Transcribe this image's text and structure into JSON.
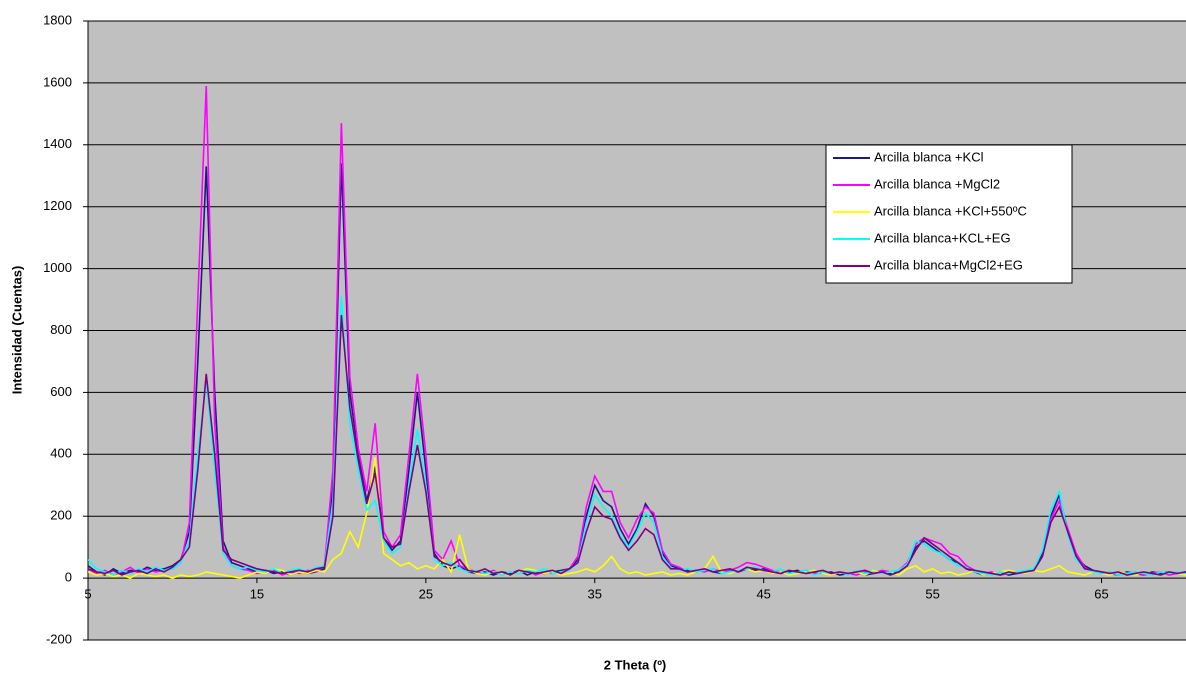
{
  "chart_data": {
    "type": "line",
    "xlabel": "2 Theta (º)",
    "ylabel": "Intensidad (Cuentas)",
    "xlim": [
      5,
      70
    ],
    "ylim": [
      -200,
      1800
    ],
    "xticks": [
      5,
      15,
      25,
      35,
      45,
      55,
      65
    ],
    "yticks": [
      -200,
      0,
      200,
      400,
      600,
      800,
      1000,
      1200,
      1400,
      1600,
      1800
    ],
    "grid": true,
    "legend": "upper right",
    "x": [
      5,
      5.5,
      6,
      6.5,
      7,
      7.5,
      8,
      8.5,
      9,
      9.5,
      10,
      10.5,
      11,
      11.5,
      12,
      12.5,
      13,
      13.5,
      14,
      14.5,
      15,
      15.5,
      16,
      16.5,
      17,
      17.5,
      18,
      18.5,
      19,
      19.5,
      20,
      20.5,
      21,
      21.5,
      22,
      22.5,
      23,
      23.5,
      24,
      24.5,
      25,
      25.5,
      26,
      26.5,
      27,
      27.5,
      28,
      28.5,
      29,
      29.5,
      30,
      30.5,
      31,
      31.5,
      32,
      32.5,
      33,
      33.5,
      34,
      34.5,
      35,
      35.5,
      36,
      36.5,
      37,
      37.5,
      38,
      38.5,
      39,
      39.5,
      40,
      40.5,
      41,
      41.5,
      42,
      42.5,
      43,
      43.5,
      44,
      44.5,
      45,
      45.5,
      46,
      46.5,
      47,
      47.5,
      48,
      48.5,
      49,
      49.5,
      50,
      50.5,
      51,
      51.5,
      52,
      52.5,
      53,
      53.5,
      54,
      54.5,
      55,
      55.5,
      56,
      56.5,
      57,
      57.5,
      58,
      58.5,
      59,
      59.5,
      60,
      60.5,
      61,
      61.5,
      62,
      62.5,
      63,
      63.5,
      64,
      64.5,
      65,
      65.5,
      66,
      66.5,
      67,
      67.5,
      68,
      68.5,
      69,
      69.5,
      70
    ],
    "series": [
      {
        "name": "Arcilla blanca +KCl",
        "color": "#1a1a80",
        "values": [
          40,
          20,
          10,
          30,
          15,
          25,
          20,
          35,
          25,
          30,
          40,
          60,
          150,
          700,
          1330,
          600,
          120,
          50,
          40,
          30,
          20,
          25,
          15,
          20,
          10,
          20,
          15,
          20,
          30,
          300,
          1340,
          600,
          400,
          250,
          360,
          130,
          90,
          120,
          350,
          600,
          350,
          80,
          40,
          30,
          40,
          20,
          15,
          20,
          10,
          20,
          15,
          25,
          10,
          20,
          15,
          20,
          25,
          30,
          60,
          200,
          300,
          250,
          230,
          160,
          110,
          160,
          240,
          200,
          80,
          40,
          30,
          25,
          20,
          30,
          20,
          15,
          25,
          20,
          30,
          25,
          30,
          20,
          15,
          20,
          25,
          15,
          20,
          15,
          20,
          10,
          15,
          20,
          10,
          15,
          20,
          15,
          20,
          40,
          100,
          120,
          100,
          80,
          60,
          50,
          30,
          20,
          10,
          15,
          20,
          10,
          15,
          20,
          30,
          80,
          200,
          270,
          150,
          70,
          40,
          25,
          20,
          15,
          10,
          20,
          15,
          10,
          20,
          15,
          20,
          15,
          20
        ]
      },
      {
        "name": "Arcilla blanca +MgCl2",
        "color": "#ff00ff",
        "values": [
          30,
          15,
          25,
          10,
          20,
          35,
          15,
          30,
          20,
          25,
          30,
          50,
          180,
          900,
          1590,
          500,
          100,
          40,
          30,
          25,
          15,
          20,
          25,
          10,
          20,
          15,
          25,
          20,
          40,
          350,
          1470,
          650,
          420,
          280,
          500,
          150,
          100,
          140,
          400,
          660,
          400,
          90,
          60,
          120,
          40,
          30,
          20,
          15,
          25,
          10,
          20,
          15,
          25,
          10,
          20,
          15,
          20,
          30,
          70,
          230,
          330,
          280,
          280,
          180,
          130,
          190,
          230,
          210,
          90,
          45,
          35,
          20,
          25,
          20,
          30,
          20,
          25,
          35,
          50,
          45,
          35,
          25,
          20,
          15,
          20,
          25,
          15,
          20,
          10,
          20,
          15,
          10,
          20,
          15,
          25,
          20,
          25,
          50,
          110,
          130,
          120,
          110,
          80,
          70,
          40,
          25,
          15,
          20,
          10,
          15,
          20,
          15,
          25,
          70,
          190,
          250,
          160,
          80,
          35,
          20,
          15,
          20,
          10,
          15,
          20,
          10,
          15,
          20,
          10,
          15,
          20
        ]
      },
      {
        "name": "Arcilla blanca +KCl+550ºC",
        "color": "#ffff00",
        "values": [
          20,
          10,
          15,
          5,
          10,
          0,
          15,
          10,
          5,
          10,
          0,
          10,
          5,
          10,
          20,
          15,
          10,
          5,
          0,
          10,
          20,
          15,
          30,
          25,
          10,
          20,
          15,
          25,
          20,
          60,
          80,
          150,
          100,
          210,
          390,
          80,
          60,
          40,
          50,
          30,
          40,
          30,
          60,
          20,
          140,
          30,
          15,
          10,
          20,
          15,
          10,
          20,
          30,
          25,
          15,
          20,
          10,
          15,
          20,
          30,
          20,
          40,
          70,
          30,
          15,
          20,
          10,
          15,
          20,
          10,
          15,
          10,
          20,
          30,
          70,
          20,
          15,
          25,
          30,
          20,
          25,
          15,
          20,
          10,
          15,
          20,
          25,
          15,
          10,
          20,
          15,
          20,
          10,
          25,
          15,
          20,
          10,
          30,
          40,
          20,
          30,
          15,
          20,
          10,
          15,
          25,
          10,
          15,
          20,
          25,
          20,
          15,
          25,
          20,
          30,
          40,
          20,
          15,
          10,
          20,
          15,
          10,
          20,
          15,
          10,
          20,
          15,
          10,
          20,
          15,
          10
        ]
      },
      {
        "name": "Arcilla blanca+KCL+EG",
        "color": "#00ffff",
        "values": [
          60,
          30,
          20,
          10,
          25,
          15,
          30,
          20,
          35,
          25,
          30,
          50,
          120,
          400,
          640,
          350,
          80,
          40,
          30,
          35,
          25,
          20,
          30,
          15,
          25,
          30,
          20,
          35,
          40,
          250,
          910,
          500,
          350,
          220,
          250,
          120,
          80,
          100,
          300,
          480,
          300,
          60,
          40,
          50,
          30,
          20,
          25,
          15,
          20,
          10,
          20,
          15,
          25,
          20,
          30,
          15,
          20,
          25,
          50,
          180,
          270,
          230,
          200,
          140,
          100,
          150,
          210,
          180,
          70,
          35,
          25,
          30,
          20,
          25,
          30,
          15,
          20,
          25,
          30,
          35,
          25,
          20,
          30,
          15,
          20,
          25,
          10,
          20,
          15,
          20,
          10,
          25,
          15,
          20,
          15,
          20,
          25,
          45,
          120,
          110,
          90,
          80,
          60,
          40,
          35,
          20,
          15,
          10,
          20,
          15,
          20,
          25,
          30,
          90,
          220,
          280,
          140,
          60,
          30,
          20,
          15,
          20,
          10,
          15,
          20,
          15,
          10,
          20,
          15,
          20,
          15
        ]
      },
      {
        "name": "Arcilla blanca+MgCl2+EG",
        "color": "#800080",
        "values": [
          30,
          20,
          15,
          25,
          10,
          20,
          25,
          15,
          30,
          20,
          35,
          60,
          100,
          350,
          660,
          400,
          90,
          60,
          50,
          40,
          30,
          25,
          20,
          15,
          20,
          25,
          20,
          30,
          35,
          200,
          850,
          550,
          380,
          240,
          340,
          130,
          100,
          110,
          280,
          430,
          280,
          70,
          50,
          40,
          60,
          25,
          20,
          30,
          15,
          20,
          10,
          25,
          20,
          15,
          20,
          25,
          15,
          30,
          50,
          150,
          230,
          200,
          190,
          130,
          90,
          120,
          160,
          140,
          60,
          30,
          30,
          20,
          25,
          30,
          20,
          25,
          30,
          20,
          35,
          30,
          25,
          20,
          15,
          25,
          20,
          15,
          20,
          25,
          15,
          20,
          15,
          20,
          25,
          15,
          20,
          10,
          20,
          40,
          90,
          130,
          110,
          90,
          70,
          50,
          30,
          25,
          20,
          15,
          10,
          20,
          15,
          20,
          25,
          70,
          180,
          230,
          150,
          70,
          30,
          25,
          20,
          15,
          20,
          10,
          15,
          20,
          15,
          10,
          20,
          15,
          20
        ]
      }
    ]
  }
}
